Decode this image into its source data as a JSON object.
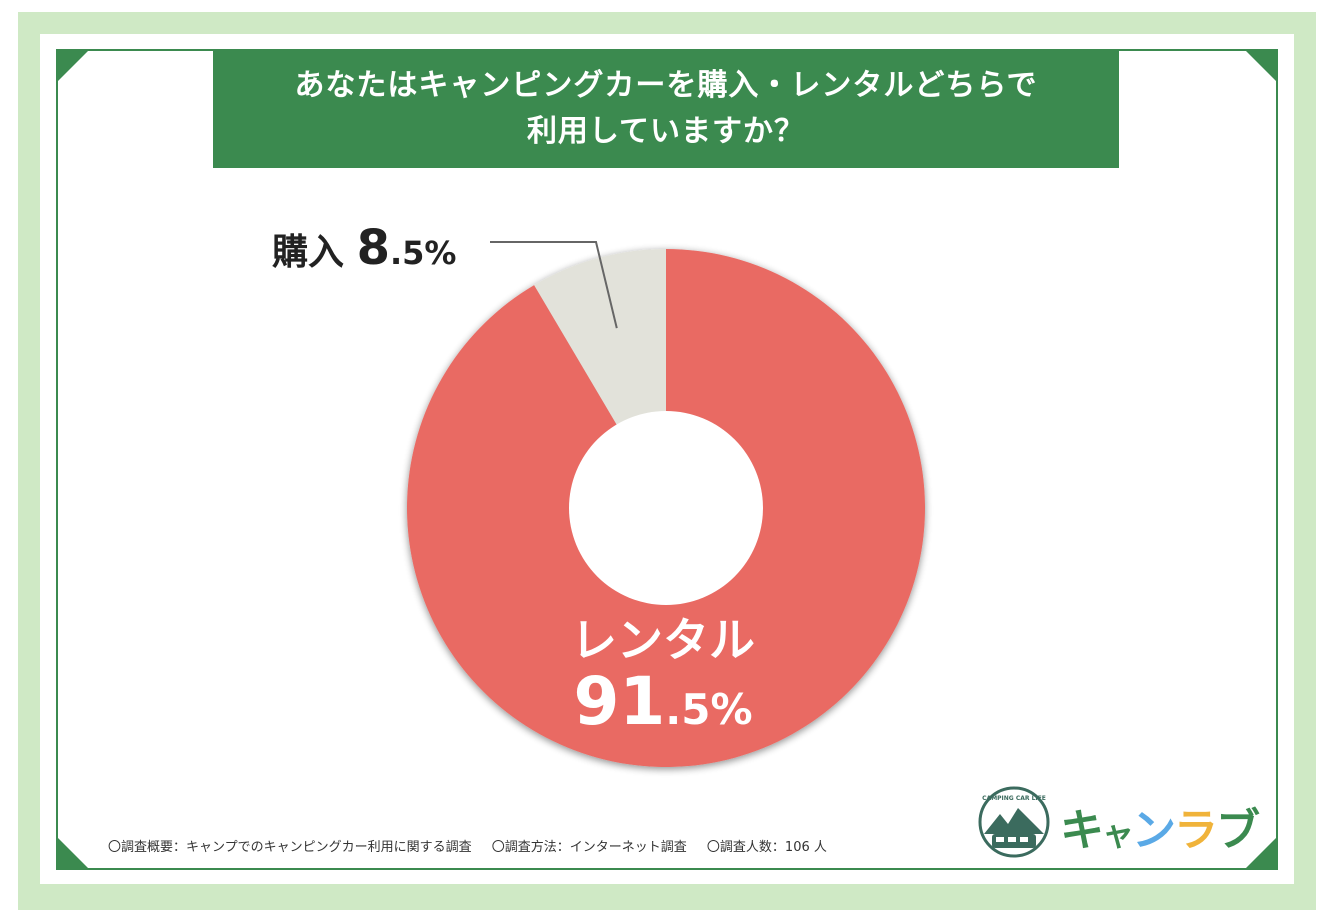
{
  "title": {
    "line1": "あなたはキャンピングカーを購入・レンタルどちらで",
    "line2": "利用していますか？"
  },
  "chart_data": {
    "type": "pie",
    "donut": true,
    "slices": [
      {
        "label": "レンタル",
        "value": 91.5,
        "display_int": "91",
        "display_dec": ".5%",
        "color": "#e96a63"
      },
      {
        "label": "購入",
        "value": 8.5,
        "display_int": "8",
        "display_dec": ".5%",
        "color": "#e2e2da"
      }
    ]
  },
  "footnote": {
    "survey": "〇調査概要：キャンプでのキャンピングカー利用に関する調査",
    "method": "〇調査方法：インターネット調査",
    "count": "〇調査人数：106 人"
  },
  "logo": {
    "emblem_text": "CAMPING CAR LIFE",
    "chars": [
      "キ",
      "ャ",
      "ン",
      "ラ",
      "ブ"
    ],
    "char_colors": [
      "#3b8a4f",
      "#3b8a4f",
      "#5aa9e6",
      "#f0b33a",
      "#3b8a4f"
    ]
  },
  "colors": {
    "accent_green": "#3b8a4f",
    "outer_bg": "#cfe9c5"
  }
}
